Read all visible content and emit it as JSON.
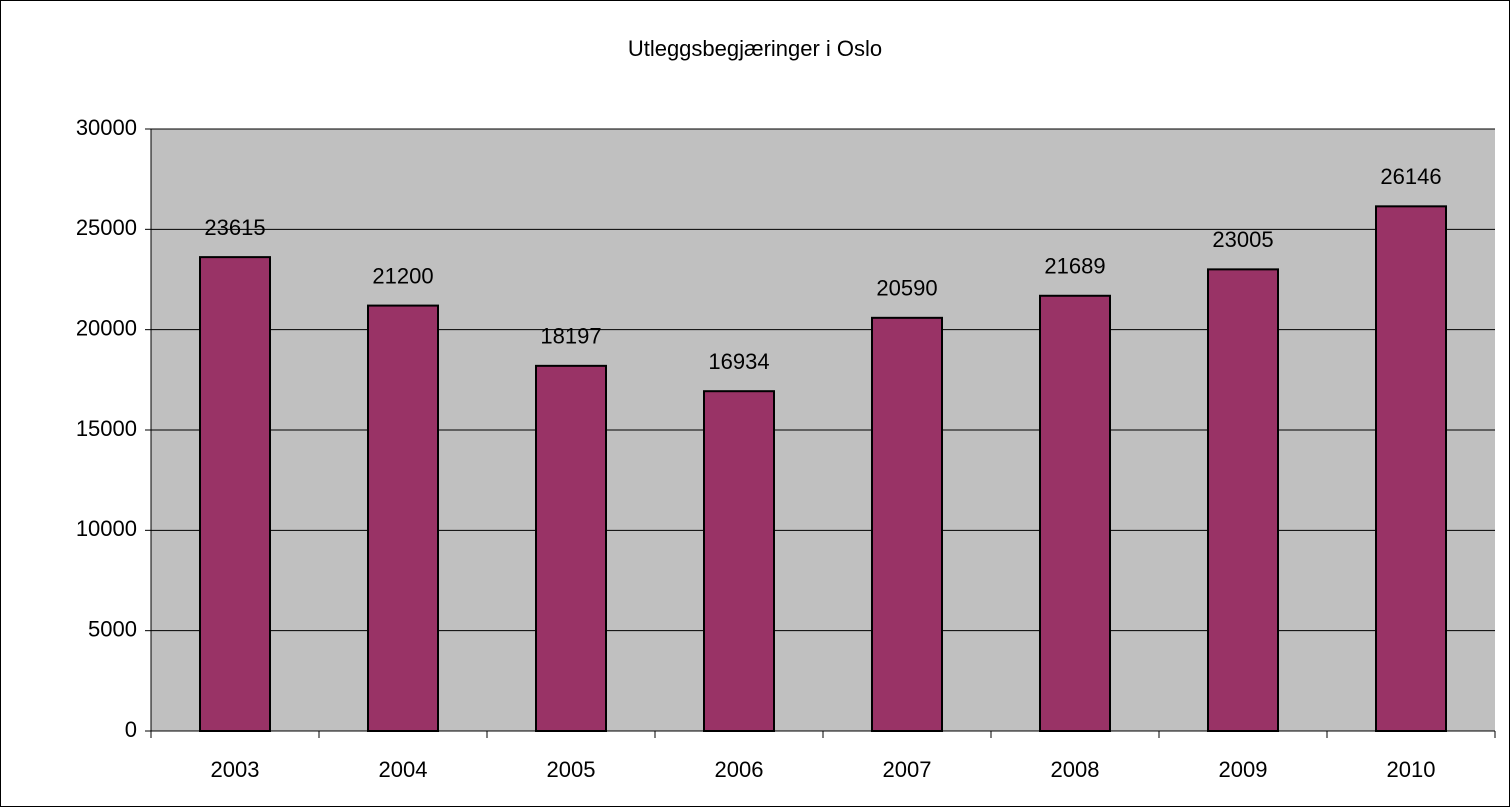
{
  "chart_data": {
    "type": "bar",
    "title": "Utleggsbegjæringer i Oslo",
    "categories": [
      "2003",
      "2004",
      "2005",
      "2006",
      "2007",
      "2008",
      "2009",
      "2010"
    ],
    "values": [
      23615,
      21200,
      18197,
      16934,
      20590,
      21689,
      23005,
      26146
    ],
    "color": "#993366",
    "background": "#c0c0c0",
    "ylim": [
      0,
      30000
    ],
    "yticks": [
      0,
      5000,
      10000,
      15000,
      20000,
      25000,
      30000
    ],
    "grid": true
  }
}
